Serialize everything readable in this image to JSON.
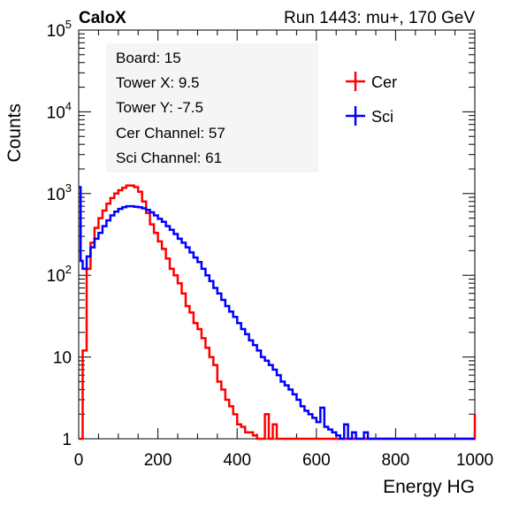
{
  "header": {
    "left_label": "CaloX",
    "right_label": "Run 1443: mu+, 170 GeV"
  },
  "info_box": {
    "lines": [
      "Board: 15",
      "Tower X: 9.5",
      "Tower Y: -7.5",
      "Cer Channel: 57",
      "Sci Channel: 61"
    ]
  },
  "legend": {
    "entries": [
      {
        "label": "Cer",
        "color": "#ff0000"
      },
      {
        "label": "Sci",
        "color": "#0000ff"
      }
    ]
  },
  "chart_data": {
    "type": "line",
    "xlabel": "Energy HG",
    "ylabel": "Counts",
    "xlim": [
      0,
      1000
    ],
    "ylim": [
      1,
      100000
    ],
    "yscale": "log",
    "x_ticks": [
      "0",
      "200",
      "400",
      "600",
      "800",
      "1000"
    ],
    "y_ticks": [
      "1",
      "10",
      "10^2",
      "10^3",
      "10^4",
      "10^5"
    ],
    "legend_position": "top-right",
    "grid": false,
    "series": [
      {
        "name": "Cer",
        "color": "#ff0000",
        "x": [
          0,
          10,
          20,
          30,
          40,
          50,
          60,
          70,
          80,
          90,
          100,
          110,
          120,
          130,
          140,
          150,
          160,
          170,
          180,
          190,
          200,
          210,
          220,
          230,
          240,
          250,
          260,
          270,
          280,
          290,
          300,
          310,
          320,
          330,
          340,
          350,
          360,
          370,
          380,
          390,
          400,
          410,
          420,
          430,
          440,
          450,
          460,
          470,
          480,
          490,
          500,
          510,
          520,
          530,
          540,
          550,
          560,
          570,
          580,
          600,
          700,
          800,
          900,
          990,
          1000
        ],
        "y": [
          1,
          12,
          120,
          250,
          380,
          500,
          620,
          750,
          880,
          1000,
          1100,
          1180,
          1250,
          1250,
          1200,
          1050,
          800,
          580,
          420,
          330,
          260,
          210,
          160,
          120,
          100,
          80,
          60,
          42,
          35,
          26,
          22,
          17,
          13,
          10,
          8,
          5,
          4,
          3,
          2.5,
          2,
          1.5,
          1.4,
          1.2,
          1.2,
          1.1,
          1,
          1,
          2,
          1,
          1.5,
          1,
          1,
          1,
          1,
          1,
          1,
          1,
          1,
          1,
          1,
          1,
          1,
          1,
          1,
          2
        ]
      },
      {
        "name": "Sci",
        "color": "#0000ff",
        "x": [
          0,
          5,
          10,
          20,
          30,
          40,
          50,
          60,
          70,
          80,
          90,
          100,
          110,
          120,
          130,
          140,
          150,
          160,
          170,
          180,
          190,
          200,
          210,
          220,
          230,
          240,
          250,
          260,
          270,
          280,
          290,
          300,
          310,
          320,
          330,
          340,
          350,
          360,
          370,
          380,
          390,
          400,
          410,
          420,
          430,
          440,
          450,
          460,
          470,
          480,
          490,
          500,
          510,
          520,
          530,
          540,
          550,
          560,
          570,
          580,
          590,
          600,
          610,
          620,
          630,
          640,
          650,
          660,
          670,
          680,
          690,
          700,
          710,
          720,
          730,
          740,
          750,
          800,
          900,
          1000
        ],
        "y": [
          1200,
          150,
          120,
          170,
          220,
          280,
          330,
          400,
          470,
          540,
          600,
          650,
          680,
          700,
          700,
          690,
          680,
          660,
          630,
          590,
          540,
          490,
          450,
          400,
          360,
          320,
          280,
          250,
          220,
          190,
          165,
          145,
          120,
          100,
          85,
          70,
          60,
          50,
          42,
          36,
          31,
          26,
          22,
          19,
          16,
          14,
          12,
          10,
          9,
          8,
          7,
          6,
          5,
          4.5,
          4,
          3.5,
          3,
          2.5,
          2.2,
          2,
          1.8,
          1.6,
          2.4,
          1.4,
          1.3,
          1.2,
          1.1,
          1,
          1.5,
          1,
          1.2,
          1,
          1,
          1.2,
          1,
          1,
          1,
          1,
          1,
          1
        ]
      }
    ]
  }
}
